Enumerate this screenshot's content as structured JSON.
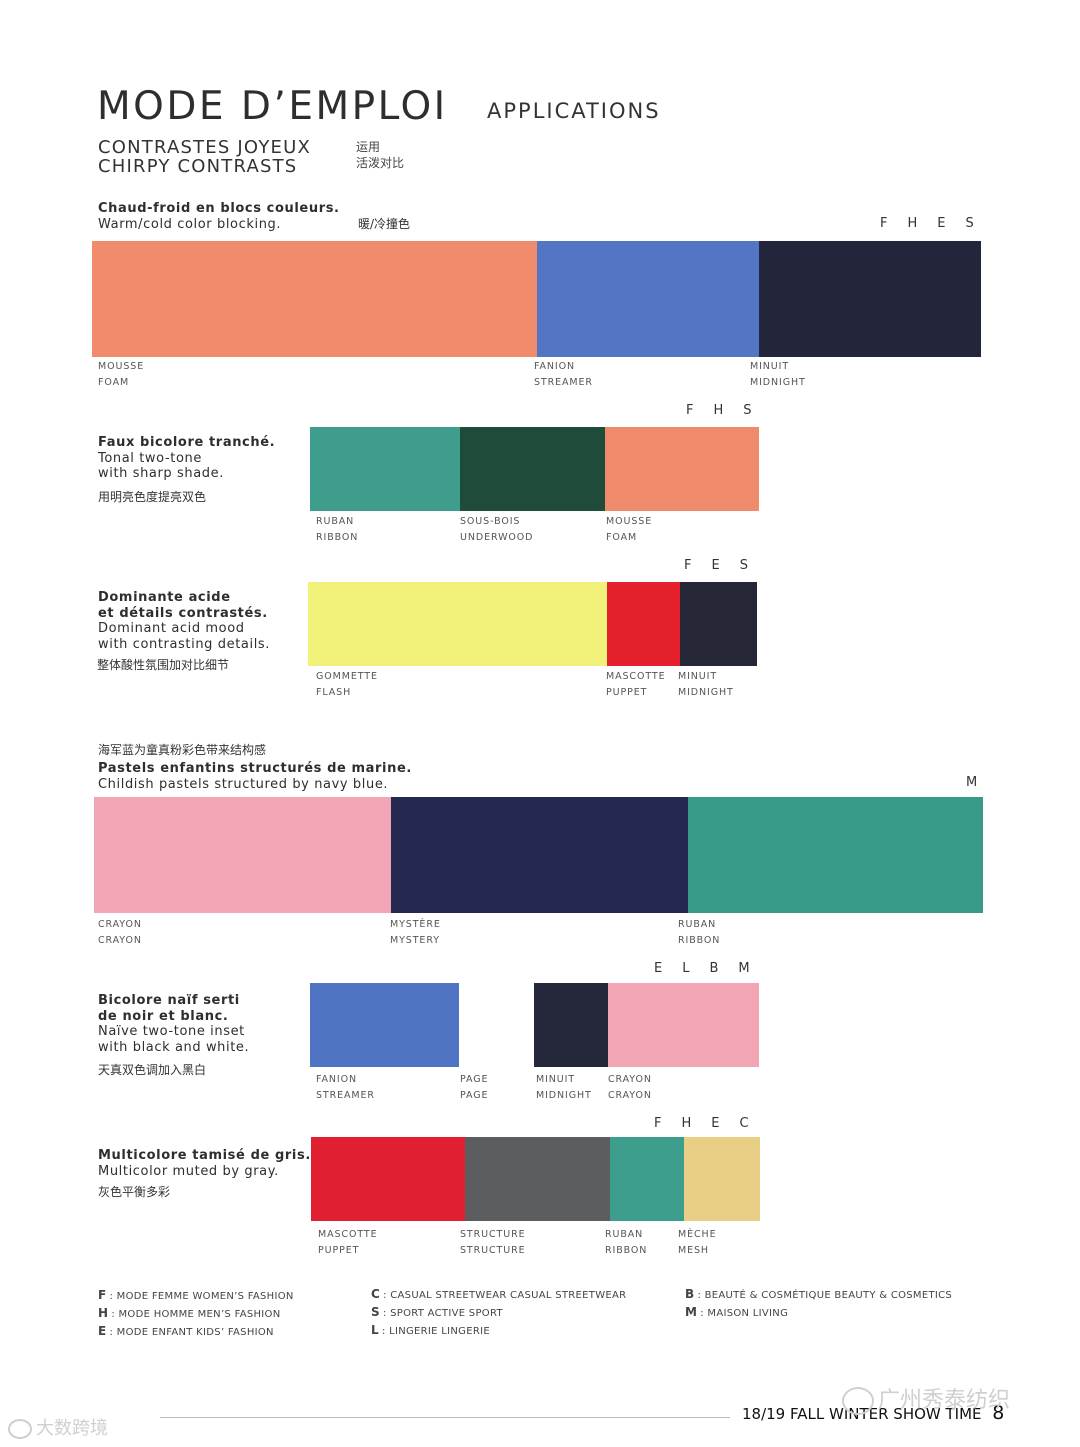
{
  "header": {
    "title": "MODE D’EMPLOI",
    "subtitle": "APPLICATIONS",
    "section_fr": "CONTRASTES JOYEUX",
    "section_en": "CHIRPY CONTRASTS",
    "section_cn_1": "运用",
    "section_cn_2": "活泼对比"
  },
  "blocks": [
    {
      "desc_bold": [
        "Chaud-froid en blocs couleurs."
      ],
      "desc": [
        "Warm/cold color blocking."
      ],
      "cn": "暖/冷撞色",
      "codes": "FHES",
      "swatches": [
        {
          "color": "#f08c6c",
          "fr": "MOUSSE",
          "en": "FOAM"
        },
        {
          "color": "#5276c4",
          "fr": "FANION",
          "en": "STREAMER"
        },
        {
          "color": "#23263a",
          "fr": "MINUIT",
          "en": "MIDNIGHT"
        }
      ]
    },
    {
      "desc_bold": [
        "Faux bicolore tranché."
      ],
      "desc": [
        "Tonal two-tone",
        "with sharp shade."
      ],
      "cn": "用明亮色度提亮双色",
      "codes": "FHS",
      "swatches": [
        {
          "color": "#3f9d8d",
          "fr": "RUBAN",
          "en": "RIBBON"
        },
        {
          "color": "#1f4b3b",
          "fr": "SOUS-BOIS",
          "en": "UNDERWOOD"
        },
        {
          "color": "#ef8b6b",
          "fr": "MOUSSE",
          "en": "FOAM"
        }
      ]
    },
    {
      "desc_bold": [
        "Dominante acide",
        "et détails contrastés."
      ],
      "desc": [
        "Dominant acid mood",
        "with contrasting details."
      ],
      "cn": "整体酸性氛围加对比细节",
      "codes": "FES",
      "swatches": [
        {
          "color": "#f2f17a",
          "fr": "GOMMETTE",
          "en": "FLASH"
        },
        {
          "color": "#e3202c",
          "fr": "MASCOTTE",
          "en": "PUPPET"
        },
        {
          "color": "#262736",
          "fr": "MINUIT",
          "en": "MIDNIGHT"
        }
      ]
    },
    {
      "cn_top": "海军蓝为童真粉彩色带来结构感",
      "desc_bold": [
        "Pastels enfantins structurés de marine."
      ],
      "desc": [
        "Childish pastels structured by navy blue."
      ],
      "codes": "M",
      "swatches": [
        {
          "color": "#f1a5b5",
          "fr": "CRAYON",
          "en": "CRAYON"
        },
        {
          "color": "#25294f",
          "fr": "MYSTÈRE",
          "en": "MYSTERY"
        },
        {
          "color": "#389a89",
          "fr": "RUBAN",
          "en": "RIBBON"
        }
      ]
    },
    {
      "desc_bold": [
        "Bicolore naïf serti",
        "de noir et blanc."
      ],
      "desc": [
        "Naïve two-tone inset",
        "with black and white."
      ],
      "cn": "天真双色调加入黑白",
      "codes": "ELBM",
      "swatches": [
        {
          "color": "#4f74c3",
          "fr": "FANION",
          "en": "STREAMER"
        },
        {
          "color": "#ffffff",
          "fr": "PAGE",
          "en": "PAGE"
        },
        {
          "color": "#25273a",
          "fr": "MINUIT",
          "en": "MIDNIGHT"
        },
        {
          "color": "#f2a6b4",
          "fr": "CRAYON",
          "en": "CRAYON"
        }
      ]
    },
    {
      "desc_bold": [
        "Multicolore tamisé de gris."
      ],
      "desc": [
        "Multicolor muted by gray."
      ],
      "cn": "灰色平衡多彩",
      "codes": "FHEC",
      "swatches": [
        {
          "color": "#e01f30",
          "fr": "MASCOTTE",
          "en": "PUPPET"
        },
        {
          "color": "#5b5d61",
          "fr": "STRUCTURE",
          "en": "STRUCTURE"
        },
        {
          "color": "#3d9e8d",
          "fr": "RUBAN",
          "en": "RIBBON"
        },
        {
          "color": "#e9ce86",
          "fr": "MÈCHE",
          "en": "MESH"
        }
      ]
    }
  ],
  "legend": [
    {
      "key": "F",
      "text": ": MODE FEMME WOMEN’S FASHION"
    },
    {
      "key": "H",
      "text": ": MODE HOMME MEN’S FASHION"
    },
    {
      "key": "E",
      "text": ": MODE ENFANT KIDS’ FASHION"
    },
    {
      "key": "C",
      "text": ": CASUAL STREETWEAR CASUAL STREETWEAR"
    },
    {
      "key": "S",
      "text": ": SPORT ACTIVE SPORT"
    },
    {
      "key": "L",
      "text": ": LINGERIE LINGERIE"
    },
    {
      "key": "B",
      "text": ": BEAUTÉ & COSMÉTIQUE BEAUTY & COSMETICS"
    },
    {
      "key": "M",
      "text": ": MAISON LIVING"
    }
  ],
  "footer": {
    "text": "18/19 FALL WINTER SHOW  TIME",
    "page": "8"
  },
  "watermarks": {
    "right": "广州秀泰纺织",
    "left": "大数跨境"
  }
}
